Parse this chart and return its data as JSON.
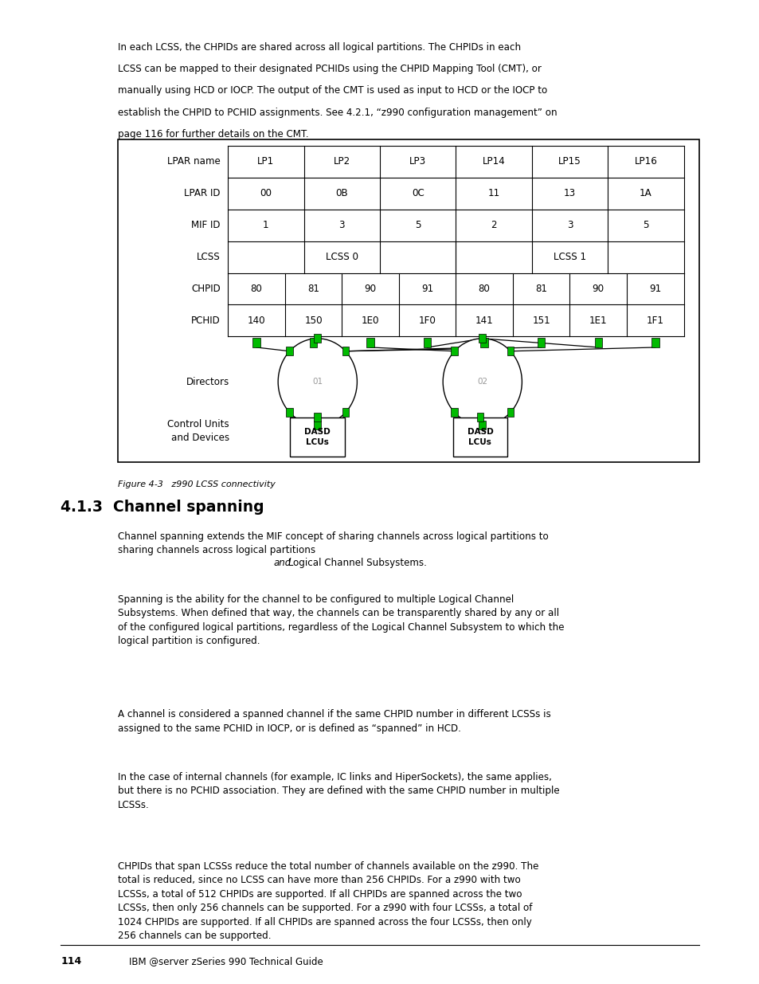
{
  "page_bg": "#ffffff",
  "top_text": [
    "In each LCSS, the CHPIDs are shared across all logical partitions. The CHPIDs in each",
    "LCSS can be mapped to their designated PCHIDs using the CHPID Mapping Tool (CMT), or",
    "manually using HCD or IOCP. The output of the CMT is used as input to HCD or the IOCP to",
    "establish the CHPID to PCHID assignments. See 4.2.1, “z990 configuration management” on",
    "page 116 for further details on the CMT."
  ],
  "table": {
    "row_labels": [
      "LPAR name",
      "LPAR ID",
      "MIF ID",
      "LCSS",
      "CHPID",
      "PCHID"
    ],
    "lpar_names": [
      "LP1",
      "LP2",
      "LP3",
      "LP14",
      "LP15",
      "LP16"
    ],
    "lpar_ids": [
      "00",
      "0B",
      "0C",
      "11",
      "13",
      "1A"
    ],
    "mif_ids": [
      "1",
      "3",
      "5",
      "2",
      "3",
      "5"
    ],
    "lcss_labels": [
      "LCSS 0",
      "LCSS 1"
    ],
    "chpid_values": [
      "80",
      "81",
      "90",
      "91",
      "80",
      "81",
      "90",
      "91"
    ],
    "pchid_values": [
      "140",
      "150",
      "1E0",
      "1F0",
      "141",
      "151",
      "1E1",
      "1F1"
    ]
  },
  "figure_caption": "Figure 4-3   z990 LCSS connectivity",
  "section_title": "4.1.3  Channel spanning",
  "body_paragraphs": [
    "Channel spanning extends the MIF concept of sharing channels across logical partitions to\nsharing channels across logical partitions ",
    "and",
    " Logical Channel Subsystems.",
    "Spanning is the ability for the channel to be configured to multiple Logical Channel\nSubsystems. When defined that way, the channels can be transparently shared by any or all\nof the configured logical partitions, regardless of the Logical Channel Subsystem to which the\nlogical partition is configured.",
    "A channel is considered a spanned channel if the same CHPID number in different LCSSs is\nassigned to the same PCHID in IOCP, or is defined as “spanned” in HCD.",
    "In the case of internal channels (for example, IC links and HiperSockets), the same applies,\nbut there is no PCHID association. They are defined with the same CHPID number in multiple\nLCSSs.",
    "CHPIDs that span LCSSs reduce the total number of channels available on the z990. The\ntotal is reduced, since no LCSS can have more than 256 CHPIDs. For a z990 with two\nLCSSs, a total of 512 CHPIDs are supported. If all CHPIDs are spanned across the two\nLCSSs, then only 256 channels can be supported. For a z990 with four LCSSs, a total of\n1024 CHPIDs are supported. If all CHPIDs are spanned across the four LCSSs, then only\n256 channels can be supported."
  ],
  "footer_num": "114",
  "footer_rest": "IBM @server zSeries 990 Technical Guide",
  "green_color": "#00bb00",
  "line_color": "#000000"
}
